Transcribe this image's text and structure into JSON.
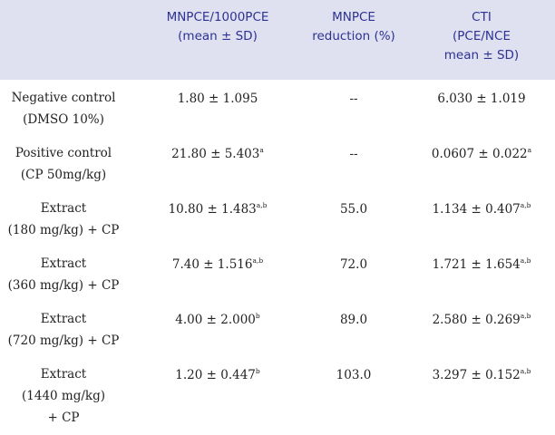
{
  "header": {
    "col1": [
      "MNPCE/1000PCE",
      "(mean ± SD)"
    ],
    "col2": [
      "MNPCE",
      "reduction (%)"
    ],
    "col3": [
      "CTI",
      "(PCE/NCE",
      "mean ± SD)"
    ]
  },
  "rows": [
    {
      "label": [
        "Negative control",
        "(DMSO 10%)"
      ],
      "mnpce": "1.80 ± 1.095",
      "mnpce_sup": "",
      "reduction": "--",
      "cti": "6.030 ± 1.019",
      "cti_sup": ""
    },
    {
      "label": [
        "Positive control",
        "(CP 50mg/kg)"
      ],
      "mnpce": "21.80 ± 5.403",
      "mnpce_sup": "a",
      "reduction": "--",
      "cti": "0.0607 ± 0.022",
      "cti_sup": "a"
    },
    {
      "label": [
        "Extract",
        "(180 mg/kg) + CP"
      ],
      "mnpce": "10.80 ± 1.483",
      "mnpce_sup": "a,b",
      "reduction": "55.0",
      "cti": "1.134 ± 0.407",
      "cti_sup": "a,b"
    },
    {
      "label": [
        "Extract",
        "(360 mg/kg) + CP"
      ],
      "mnpce": "7.40 ± 1.516",
      "mnpce_sup": "a,b",
      "reduction": "72.0",
      "cti": "1.721 ± 1.654",
      "cti_sup": "a,b"
    },
    {
      "label": [
        "Extract",
        "(720 mg/kg) + CP"
      ],
      "mnpce": "4.00 ± 2.000",
      "mnpce_sup": "b",
      "reduction": "89.0",
      "cti": "2.580 ± 0.269",
      "cti_sup": "a,b"
    },
    {
      "label": [
        "Extract",
        "(1440 mg/kg)",
        "+ CP"
      ],
      "mnpce": "1.20 ± 0.447",
      "mnpce_sup": "b",
      "reduction": "103.0",
      "cti": "3.297 ± 0.152",
      "cti_sup": "a,b"
    }
  ]
}
